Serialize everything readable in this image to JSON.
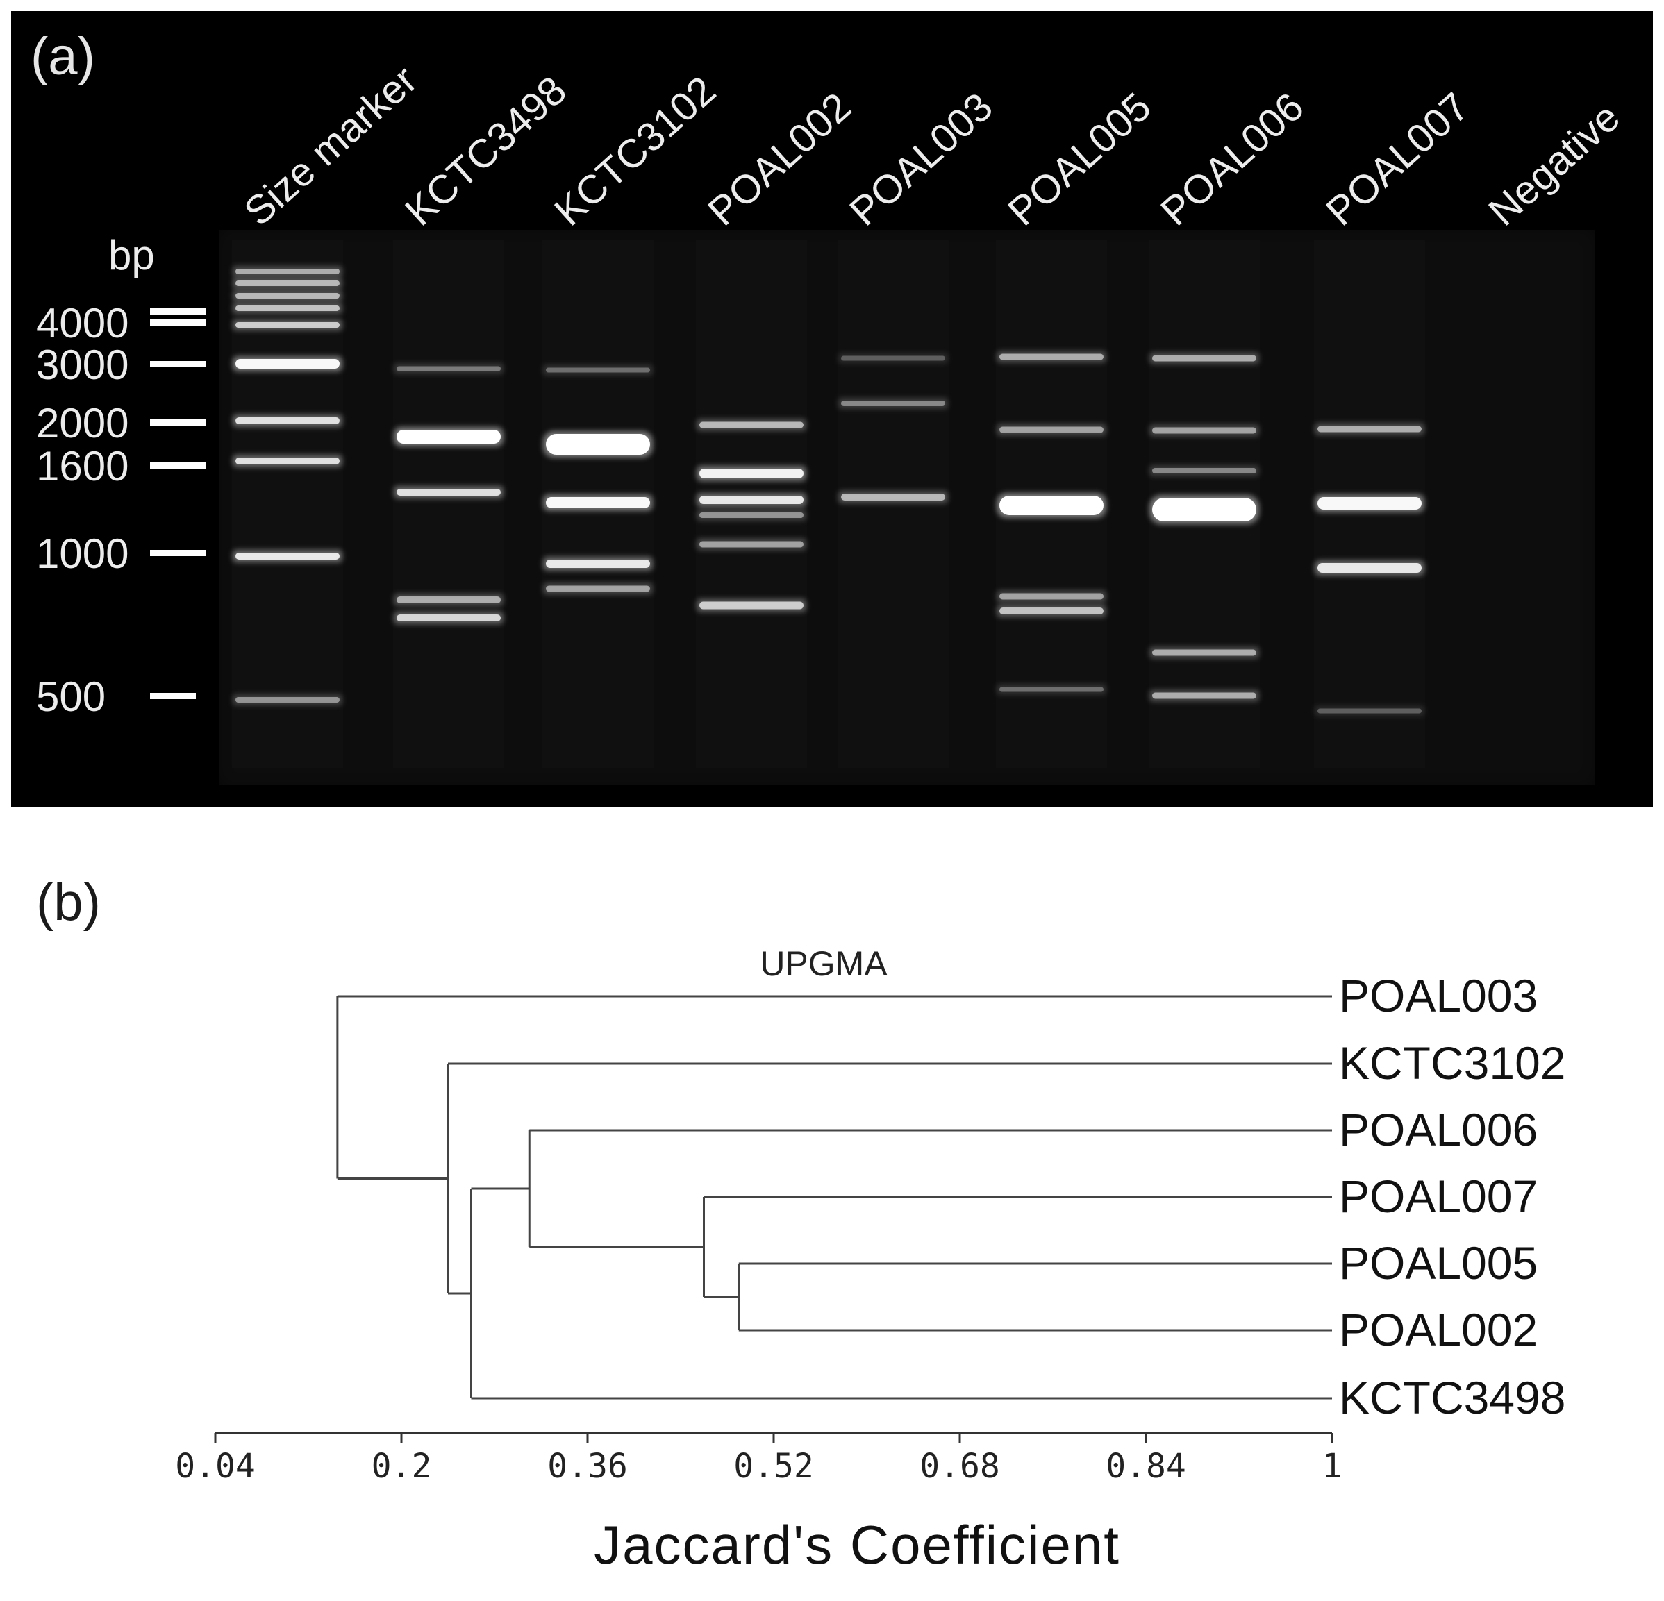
{
  "panel_a": {
    "label": "(a)",
    "lane_labels": [
      "Size marker",
      "KCTC3498",
      "KCTC3102",
      "POAL002",
      "POAL003",
      "POAL005",
      "POAL006",
      "POAL007",
      "Negative"
    ],
    "unit": "bp",
    "marker_sizes": [
      "4000",
      "3000",
      "2000",
      "1600",
      "1000",
      "500"
    ],
    "colors": {
      "background": "#000000",
      "band": "#ffffff",
      "text": "#ececec"
    }
  },
  "panel_b": {
    "label": "(b)",
    "method": "UPGMA",
    "leaves": [
      "POAL003",
      "KCTC3102",
      "POAL006",
      "POAL007",
      "POAL005",
      "POAL002",
      "KCTC3498"
    ],
    "axis": {
      "label": "Jaccard's Coefficient",
      "ticks": [
        "0.04",
        "0.2",
        "0.36",
        "0.52",
        "0.68",
        "0.84",
        "1"
      ],
      "min": 0.04,
      "max": 1
    },
    "merges": [
      {
        "members": [
          "POAL005",
          "POAL002"
        ],
        "similarity": 0.49
      },
      {
        "members": [
          "POAL007",
          "POAL005+POAL002"
        ],
        "similarity": 0.46
      },
      {
        "members": [
          "POAL006",
          "POAL007+POAL005+POAL002"
        ],
        "similarity": 0.31
      },
      {
        "members": [
          "cluster",
          "KCTC3498"
        ],
        "similarity": 0.26
      },
      {
        "members": [
          "KCTC3102",
          "cluster"
        ],
        "similarity": 0.24
      },
      {
        "members": [
          "POAL003",
          "all others"
        ],
        "similarity": 0.145
      }
    ]
  }
}
